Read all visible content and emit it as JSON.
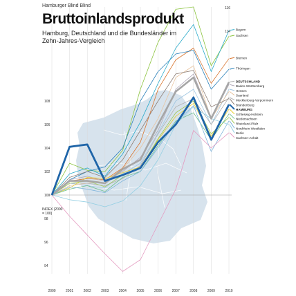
{
  "kicker": "Hamburger Blind Blind",
  "title": "Bruttoinlandsprodukt",
  "subtitle": "Hamburg, Deutschland und die Bundesländer im Zehn-Jahres-Vergleich",
  "chart_data": {
    "type": "line",
    "x": [
      2000,
      2001,
      2002,
      2003,
      2004,
      2005,
      2006,
      2007,
      2008,
      2009,
      2010
    ],
    "ylabel": "INDEX (2000 = 100)",
    "yticks": [
      94,
      96,
      98,
      100,
      102,
      104,
      106,
      108
    ],
    "ylim": [
      93,
      116
    ],
    "peak_labels": [
      "116",
      "114"
    ],
    "series": [
      {
        "name": "Sachsen",
        "color": "#8cc43f",
        "values": [
          100,
          102.7,
          102.1,
          102.0,
          103.8,
          109.0,
          113.0,
          115.8,
          116.0,
          111.0,
          113.5
        ]
      },
      {
        "name": "Bayern",
        "color": "#26a9c9",
        "values": [
          100,
          101.8,
          102.3,
          101.6,
          103.5,
          106.2,
          109.5,
          112.5,
          114.5,
          110.5,
          114.0
        ]
      },
      {
        "name": "Bremen",
        "color": "#d9752e",
        "values": [
          100,
          101.2,
          101.4,
          101.3,
          102.3,
          104.5,
          109.0,
          111.5,
          112.5,
          109.5,
          111.6
        ]
      },
      {
        "name": "Thüringen",
        "color": "#2a80b9",
        "values": [
          100,
          101.3,
          102.0,
          102.4,
          104.0,
          108.0,
          110.5,
          112.0,
          112.3,
          109.0,
          110.7
        ]
      },
      {
        "name": "DEUTSCHLAND",
        "color": "#a6a6a6",
        "values": [
          100,
          101.2,
          101.2,
          101.0,
          102.2,
          103.0,
          106.0,
          108.8,
          110.0,
          106.5,
          109.6
        ]
      },
      {
        "name": "Baden-Württemberg",
        "color": "#b0a8b8",
        "values": [
          100,
          101.3,
          101.6,
          101.2,
          102.0,
          103.2,
          105.5,
          109.0,
          110.3,
          106.5,
          109.4
        ]
      },
      {
        "name": "Hessen",
        "color": "#9fc6e2",
        "values": [
          100,
          101.0,
          100.8,
          100.6,
          101.8,
          102.7,
          105.3,
          108.0,
          109.0,
          106.0,
          109.0
        ]
      },
      {
        "name": "Saarland",
        "color": "#e8c4a0",
        "values": [
          100,
          100.8,
          101.0,
          101.3,
          102.2,
          104.0,
          106.5,
          110.0,
          111.0,
          106.5,
          108.8
        ]
      },
      {
        "name": "Mecklenburg-Vorpommern",
        "color": "#b2b2b2",
        "values": [
          100,
          101.0,
          101.0,
          100.8,
          101.4,
          102.5,
          105.2,
          107.5,
          108.2,
          106.0,
          108.3
        ]
      },
      {
        "name": "Brandenburg",
        "color": "#8f7f76",
        "values": [
          100,
          101.5,
          102.0,
          101.5,
          103.0,
          105.5,
          108.0,
          110.3,
          110.6,
          107.5,
          108.2
        ]
      },
      {
        "name": "HAMBURG",
        "color": "#1f65a8",
        "values": [
          100,
          104.1,
          104.3,
          101.2,
          101.7,
          102.3,
          104.5,
          106.0,
          108.3,
          104.7,
          107.7
        ]
      },
      {
        "name": "Schleswig-Holstein",
        "color": "#e8cf2e",
        "values": [
          100,
          100.6,
          101.5,
          101.4,
          101.9,
          102.4,
          104.7,
          106.7,
          107.8,
          105.0,
          107.3
        ]
      },
      {
        "name": "Niedersachsen",
        "color": "#6fbf8f",
        "values": [
          100,
          100.5,
          100.8,
          100.3,
          101.5,
          102.0,
          104.2,
          106.3,
          107.0,
          104.7,
          106.9
        ]
      },
      {
        "name": "Rheinland-Pfalz",
        "color": "#a2c95a",
        "values": [
          100,
          101.0,
          101.2,
          100.7,
          101.7,
          102.3,
          104.8,
          107.0,
          108.0,
          105.2,
          106.6
        ]
      },
      {
        "name": "Nordrhein-Westfalen",
        "color": "#7fb4dc",
        "values": [
          100,
          100.7,
          100.5,
          100.2,
          101.2,
          102.0,
          104.0,
          106.2,
          107.6,
          103.7,
          106.3
        ]
      },
      {
        "name": "Berlin",
        "color": "#93cfe3",
        "values": [
          100,
          99.6,
          99.4,
          99.0,
          99.5,
          100.8,
          103.0,
          106.0,
          107.5,
          106.5,
          106.0
        ]
      },
      {
        "name": "Sachsen-Anhalt",
        "color": "#e49ac0",
        "values": [
          100,
          98.2,
          96.6,
          95.0,
          93.5,
          94.5,
          97.5,
          100.5,
          105.5,
          104.0,
          105.3
        ]
      }
    ]
  }
}
